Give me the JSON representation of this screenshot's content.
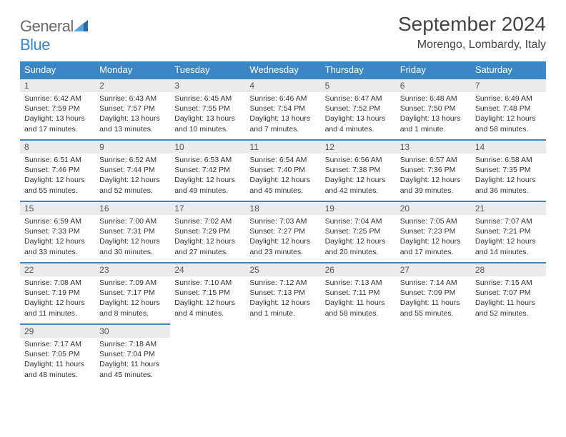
{
  "logo": {
    "word1": "General",
    "word2": "Blue"
  },
  "title": "September 2024",
  "location": "Morengo, Lombardy, Italy",
  "colors": {
    "header_bg": "#3d86c6",
    "header_text": "#ffffff",
    "daynum_bg": "#ebebeb",
    "border": "#3d86c6",
    "text": "#333333",
    "logo_blue": "#3a87c9",
    "logo_gray": "#6a6a6a"
  },
  "weekdays": [
    "Sunday",
    "Monday",
    "Tuesday",
    "Wednesday",
    "Thursday",
    "Friday",
    "Saturday"
  ],
  "weeks": [
    [
      {
        "n": "1",
        "sr": "Sunrise: 6:42 AM",
        "ss": "Sunset: 7:59 PM",
        "d1": "Daylight: 13 hours",
        "d2": "and 17 minutes."
      },
      {
        "n": "2",
        "sr": "Sunrise: 6:43 AM",
        "ss": "Sunset: 7:57 PM",
        "d1": "Daylight: 13 hours",
        "d2": "and 13 minutes."
      },
      {
        "n": "3",
        "sr": "Sunrise: 6:45 AM",
        "ss": "Sunset: 7:55 PM",
        "d1": "Daylight: 13 hours",
        "d2": "and 10 minutes."
      },
      {
        "n": "4",
        "sr": "Sunrise: 6:46 AM",
        "ss": "Sunset: 7:54 PM",
        "d1": "Daylight: 13 hours",
        "d2": "and 7 minutes."
      },
      {
        "n": "5",
        "sr": "Sunrise: 6:47 AM",
        "ss": "Sunset: 7:52 PM",
        "d1": "Daylight: 13 hours",
        "d2": "and 4 minutes."
      },
      {
        "n": "6",
        "sr": "Sunrise: 6:48 AM",
        "ss": "Sunset: 7:50 PM",
        "d1": "Daylight: 13 hours",
        "d2": "and 1 minute."
      },
      {
        "n": "7",
        "sr": "Sunrise: 6:49 AM",
        "ss": "Sunset: 7:48 PM",
        "d1": "Daylight: 12 hours",
        "d2": "and 58 minutes."
      }
    ],
    [
      {
        "n": "8",
        "sr": "Sunrise: 6:51 AM",
        "ss": "Sunset: 7:46 PM",
        "d1": "Daylight: 12 hours",
        "d2": "and 55 minutes."
      },
      {
        "n": "9",
        "sr": "Sunrise: 6:52 AM",
        "ss": "Sunset: 7:44 PM",
        "d1": "Daylight: 12 hours",
        "d2": "and 52 minutes."
      },
      {
        "n": "10",
        "sr": "Sunrise: 6:53 AM",
        "ss": "Sunset: 7:42 PM",
        "d1": "Daylight: 12 hours",
        "d2": "and 49 minutes."
      },
      {
        "n": "11",
        "sr": "Sunrise: 6:54 AM",
        "ss": "Sunset: 7:40 PM",
        "d1": "Daylight: 12 hours",
        "d2": "and 45 minutes."
      },
      {
        "n": "12",
        "sr": "Sunrise: 6:56 AM",
        "ss": "Sunset: 7:38 PM",
        "d1": "Daylight: 12 hours",
        "d2": "and 42 minutes."
      },
      {
        "n": "13",
        "sr": "Sunrise: 6:57 AM",
        "ss": "Sunset: 7:36 PM",
        "d1": "Daylight: 12 hours",
        "d2": "and 39 minutes."
      },
      {
        "n": "14",
        "sr": "Sunrise: 6:58 AM",
        "ss": "Sunset: 7:35 PM",
        "d1": "Daylight: 12 hours",
        "d2": "and 36 minutes."
      }
    ],
    [
      {
        "n": "15",
        "sr": "Sunrise: 6:59 AM",
        "ss": "Sunset: 7:33 PM",
        "d1": "Daylight: 12 hours",
        "d2": "and 33 minutes."
      },
      {
        "n": "16",
        "sr": "Sunrise: 7:00 AM",
        "ss": "Sunset: 7:31 PM",
        "d1": "Daylight: 12 hours",
        "d2": "and 30 minutes."
      },
      {
        "n": "17",
        "sr": "Sunrise: 7:02 AM",
        "ss": "Sunset: 7:29 PM",
        "d1": "Daylight: 12 hours",
        "d2": "and 27 minutes."
      },
      {
        "n": "18",
        "sr": "Sunrise: 7:03 AM",
        "ss": "Sunset: 7:27 PM",
        "d1": "Daylight: 12 hours",
        "d2": "and 23 minutes."
      },
      {
        "n": "19",
        "sr": "Sunrise: 7:04 AM",
        "ss": "Sunset: 7:25 PM",
        "d1": "Daylight: 12 hours",
        "d2": "and 20 minutes."
      },
      {
        "n": "20",
        "sr": "Sunrise: 7:05 AM",
        "ss": "Sunset: 7:23 PM",
        "d1": "Daylight: 12 hours",
        "d2": "and 17 minutes."
      },
      {
        "n": "21",
        "sr": "Sunrise: 7:07 AM",
        "ss": "Sunset: 7:21 PM",
        "d1": "Daylight: 12 hours",
        "d2": "and 14 minutes."
      }
    ],
    [
      {
        "n": "22",
        "sr": "Sunrise: 7:08 AM",
        "ss": "Sunset: 7:19 PM",
        "d1": "Daylight: 12 hours",
        "d2": "and 11 minutes."
      },
      {
        "n": "23",
        "sr": "Sunrise: 7:09 AM",
        "ss": "Sunset: 7:17 PM",
        "d1": "Daylight: 12 hours",
        "d2": "and 8 minutes."
      },
      {
        "n": "24",
        "sr": "Sunrise: 7:10 AM",
        "ss": "Sunset: 7:15 PM",
        "d1": "Daylight: 12 hours",
        "d2": "and 4 minutes."
      },
      {
        "n": "25",
        "sr": "Sunrise: 7:12 AM",
        "ss": "Sunset: 7:13 PM",
        "d1": "Daylight: 12 hours",
        "d2": "and 1 minute."
      },
      {
        "n": "26",
        "sr": "Sunrise: 7:13 AM",
        "ss": "Sunset: 7:11 PM",
        "d1": "Daylight: 11 hours",
        "d2": "and 58 minutes."
      },
      {
        "n": "27",
        "sr": "Sunrise: 7:14 AM",
        "ss": "Sunset: 7:09 PM",
        "d1": "Daylight: 11 hours",
        "d2": "and 55 minutes."
      },
      {
        "n": "28",
        "sr": "Sunrise: 7:15 AM",
        "ss": "Sunset: 7:07 PM",
        "d1": "Daylight: 11 hours",
        "d2": "and 52 minutes."
      }
    ],
    [
      {
        "n": "29",
        "sr": "Sunrise: 7:17 AM",
        "ss": "Sunset: 7:05 PM",
        "d1": "Daylight: 11 hours",
        "d2": "and 48 minutes."
      },
      {
        "n": "30",
        "sr": "Sunrise: 7:18 AM",
        "ss": "Sunset: 7:04 PM",
        "d1": "Daylight: 11 hours",
        "d2": "and 45 minutes."
      },
      null,
      null,
      null,
      null,
      null
    ]
  ]
}
